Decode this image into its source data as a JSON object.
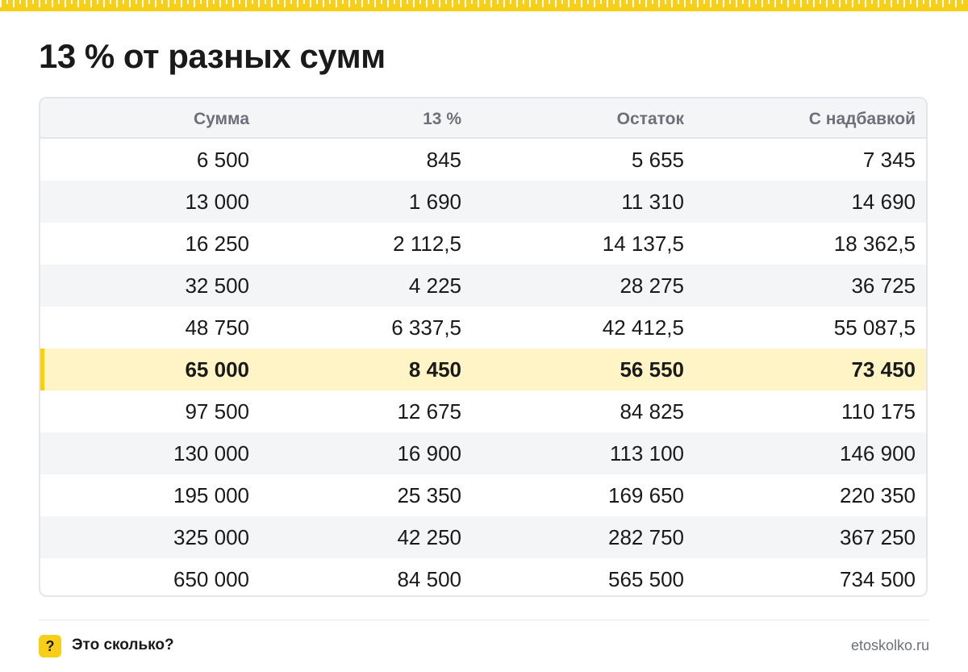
{
  "title": "13 % от разных сумм",
  "table": {
    "columns": [
      "Сумма",
      "13 %",
      "Остаток",
      "С надбавкой"
    ],
    "rows": [
      [
        "6 500",
        "845",
        "5 655",
        "7 345"
      ],
      [
        "13 000",
        "1 690",
        "11 310",
        "14 690"
      ],
      [
        "16 250",
        "2 112,5",
        "14 137,5",
        "18 362,5"
      ],
      [
        "32 500",
        "4 225",
        "28 275",
        "36 725"
      ],
      [
        "48 750",
        "6 337,5",
        "42 412,5",
        "55 087,5"
      ],
      [
        "65 000",
        "8 450",
        "56 550",
        "73 450"
      ],
      [
        "97 500",
        "12 675",
        "84 825",
        "110 175"
      ],
      [
        "130 000",
        "16 900",
        "113 100",
        "146 900"
      ],
      [
        "195 000",
        "25 350",
        "169 650",
        "220 350"
      ],
      [
        "325 000",
        "42 250",
        "282 750",
        "367 250"
      ],
      [
        "650 000",
        "84 500",
        "565 500",
        "734 500"
      ]
    ],
    "highlighted_row": 5
  },
  "footer": {
    "badge": "?",
    "badge_icon": "question-mark-icon",
    "brand": "Это сколько?",
    "url": "etoskolko.ru"
  },
  "colors": {
    "accent": "#f7cf17",
    "highlight_row": "#fff4c6",
    "alt_row": "#f4f5f7",
    "header_text": "#6d7078"
  }
}
